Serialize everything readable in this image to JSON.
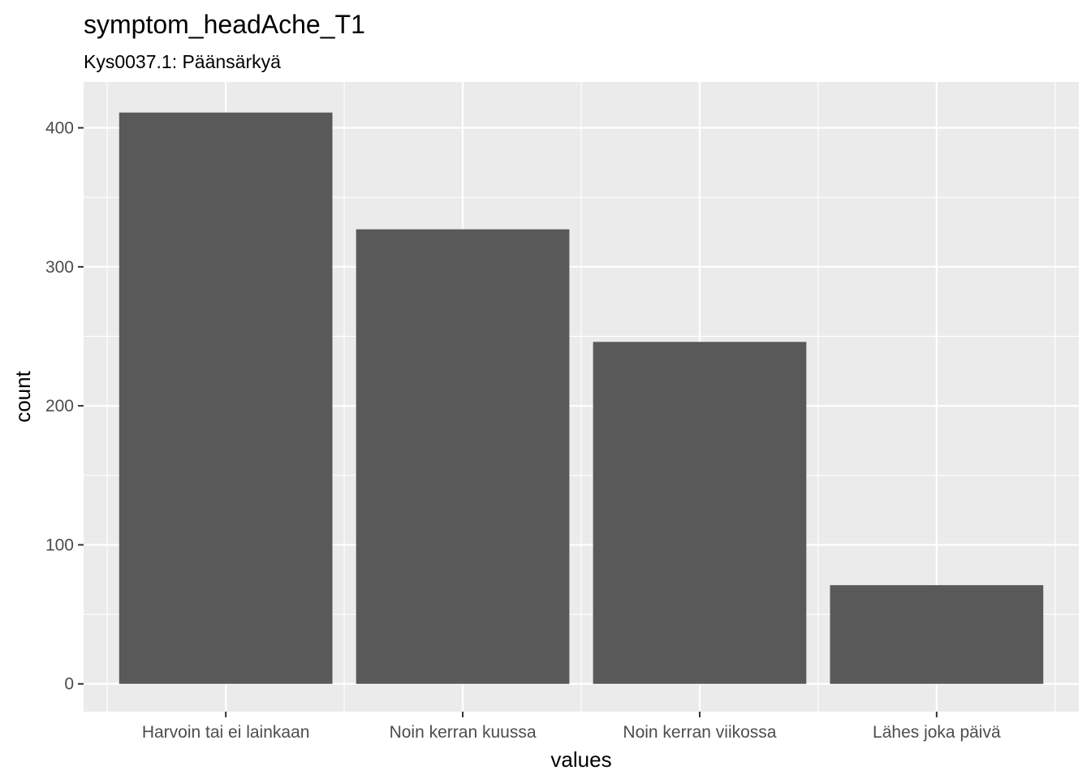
{
  "chart_data": {
    "type": "bar",
    "title": "symptom_headAche_T1",
    "subtitle": "Kys0037.1: Päänsärkyä",
    "xlabel": "values",
    "ylabel": "count",
    "categories": [
      "Harvoin tai ei lainkaan",
      "Noin kerran kuussa",
      "Noin kerran viikossa",
      "Lähes joka päivä"
    ],
    "values": [
      411,
      327,
      246,
      71
    ],
    "ylim": [
      -20,
      433
    ],
    "yticks": [
      0,
      100,
      200,
      300,
      400
    ],
    "ytick_labels": [
      "0",
      "100",
      "200",
      "300",
      "400"
    ],
    "grid": true,
    "legend": "none",
    "colors": {
      "bar": "#595959",
      "panel": "#ebebeb",
      "grid": "#ffffff",
      "tick": "#333333"
    }
  }
}
